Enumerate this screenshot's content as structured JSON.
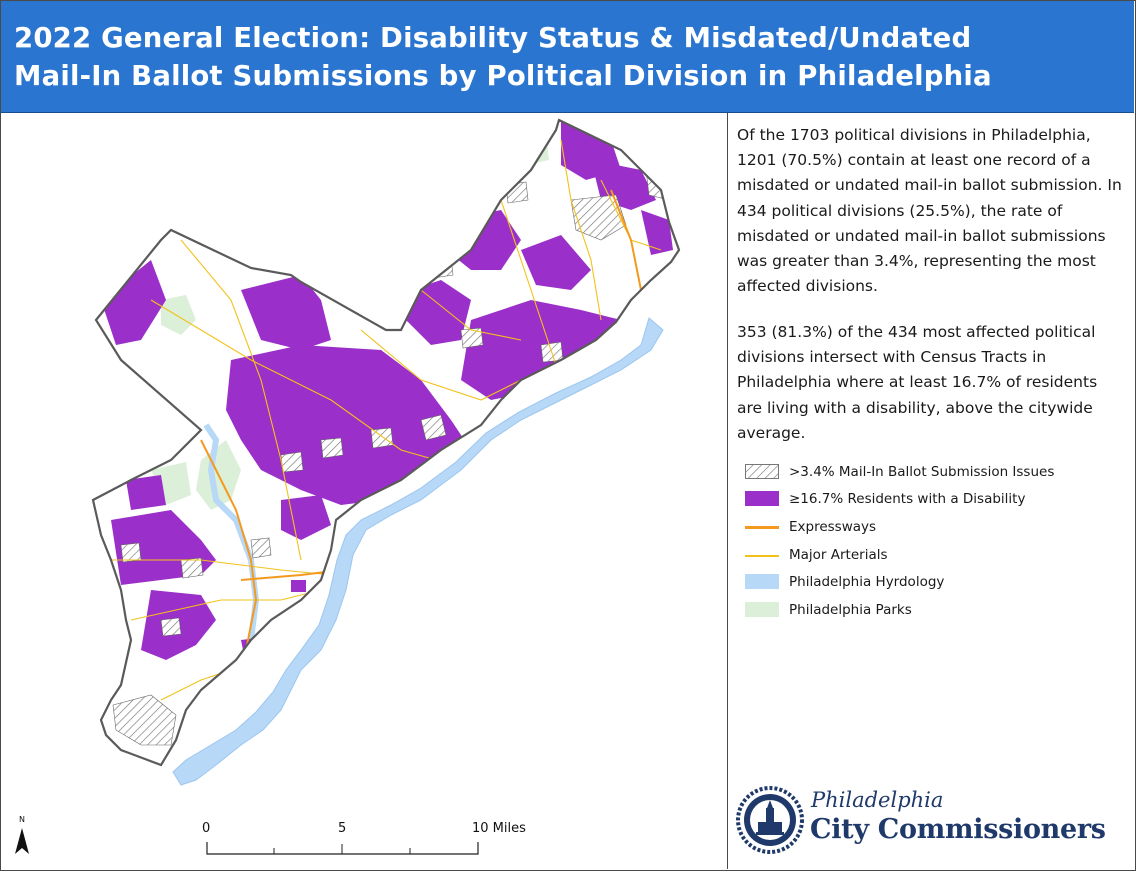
{
  "title": {
    "line1": "2022 General Election: Disability Status & Misdated/Undated",
    "line2": "Mail-In Ballot Submissions by Political Division in Philadelphia"
  },
  "description": {
    "paragraph1": "Of the 1703 political divisions in Philadelphia, 1201 (70.5%) contain at least one record of a misdated or undated mail-in ballot submission. In 434 political divisions (25.5%), the rate of misdated or undated mail-in ballot submissions was greater than 3.4%, representing the most affected divisions.",
    "paragraph2": "353 (81.3%) of the 434 most affected political divisions intersect with Census Tracts in Philadelphia where at least 16.7% of residents are living with a disability, above the citywide average."
  },
  "legend": [
    {
      "label": ">3.4% Mail-In Ballot Submission Issues",
      "style": "hatch",
      "color": "#777777"
    },
    {
      "label": "≥16.7% Residents with a Disability",
      "style": "fill",
      "color": "#9b2fc9"
    },
    {
      "label": "Expressways",
      "style": "line",
      "color": "#f39a1e"
    },
    {
      "label": "Major Arterials",
      "style": "thin-line",
      "color": "#f2c21b"
    },
    {
      "label": "Philadelphia Hyrdology",
      "style": "fill",
      "color": "#b7d8f7"
    },
    {
      "label": "Philadelphia Parks",
      "style": "fill",
      "color": "#dcefd8"
    }
  ],
  "scale_bar": {
    "labels": [
      "0",
      "5",
      "10 Miles"
    ]
  },
  "north_arrow": {
    "label": "N"
  },
  "logo": {
    "line1": "Philadelphia",
    "line2": "City Commissioners",
    "icon": "city-hall-seal-icon"
  },
  "colors": {
    "title_bar": "#2a75d0",
    "disability": "#9b2fc9",
    "hatch": "#777777",
    "water": "#b7d8f7",
    "parks": "#dcefd8",
    "expressway": "#f39a1e",
    "arterial": "#f2c21b",
    "boundary": "#555555"
  }
}
